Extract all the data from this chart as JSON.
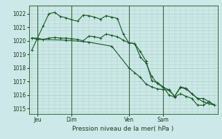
{
  "background_color": "#cce8e8",
  "grid_color": "#aacfbe",
  "line_color": "#1a5c2a",
  "vline_color": "#336633",
  "spine_color": "#336633",
  "tick_color": "#1a3a1a",
  "title": "Pression niveau de la mer( hPa )",
  "ylabel_ticks": [
    1015,
    1016,
    1017,
    1018,
    1019,
    1020,
    1021,
    1022
  ],
  "ylim": [
    1014.6,
    1022.6
  ],
  "day_labels": [
    "Jeu",
    "Dim",
    "Ven",
    "Sam"
  ],
  "day_positions": [
    1,
    7,
    17,
    23
  ],
  "vline_positions": [
    1,
    7,
    17,
    23
  ],
  "series": [
    [
      [
        0,
        1019.3
      ],
      [
        1,
        1020.2
      ],
      [
        2,
        1021.1
      ],
      [
        3,
        1022.0
      ],
      [
        4,
        1022.1
      ],
      [
        5,
        1021.8
      ],
      [
        6,
        1021.7
      ],
      [
        7,
        1021.55
      ],
      [
        8,
        1021.45
      ],
      [
        9,
        1021.9
      ],
      [
        10,
        1021.85
      ],
      [
        11,
        1021.75
      ],
      [
        12,
        1021.6
      ],
      [
        13,
        1021.85
      ],
      [
        14,
        1021.75
      ],
      [
        15,
        1021.65
      ],
      [
        16,
        1020.5
      ],
      [
        17,
        1019.85
      ],
      [
        18,
        1019.8
      ],
      [
        19,
        1019.2
      ],
      [
        20,
        1018.5
      ],
      [
        21,
        1017.05
      ],
      [
        22,
        1016.9
      ],
      [
        23,
        1016.6
      ],
      [
        24,
        1016.0
      ],
      [
        25,
        1015.85
      ],
      [
        26,
        1016.1
      ],
      [
        27,
        1015.9
      ],
      [
        28,
        1015.75
      ],
      [
        29,
        1015.25
      ],
      [
        30,
        1015.25
      ],
      [
        31,
        1015.5
      ],
      [
        32,
        1015.25
      ]
    ],
    [
      [
        0,
        1020.2
      ],
      [
        1,
        1020.2
      ],
      [
        2,
        1020.1
      ],
      [
        3,
        1020.2
      ],
      [
        4,
        1020.25
      ],
      [
        5,
        1020.2
      ],
      [
        6,
        1020.2
      ],
      [
        7,
        1020.15
      ],
      [
        8,
        1020.1
      ],
      [
        9,
        1020.0
      ],
      [
        10,
        1020.35
      ],
      [
        11,
        1020.3
      ],
      [
        12,
        1020.2
      ],
      [
        13,
        1020.5
      ],
      [
        14,
        1020.4
      ],
      [
        15,
        1020.3
      ],
      [
        16,
        1020.05
      ],
      [
        17,
        1019.85
      ],
      [
        18,
        1019.8
      ],
      [
        19,
        1018.8
      ],
      [
        20,
        1018.35
      ],
      [
        21,
        1017.35
      ],
      [
        22,
        1016.85
      ],
      [
        23,
        1016.55
      ],
      [
        24,
        1016.4
      ],
      [
        25,
        1015.9
      ],
      [
        26,
        1016.55
      ],
      [
        27,
        1016.45
      ],
      [
        28,
        1016.1
      ],
      [
        29,
        1015.75
      ],
      [
        30,
        1015.75
      ],
      [
        31,
        1015.5
      ],
      [
        32,
        1015.25
      ]
    ],
    [
      [
        0,
        1020.2
      ],
      [
        1,
        1020.1
      ],
      [
        6,
        1020.05
      ],
      [
        10,
        1019.9
      ],
      [
        14,
        1019.6
      ],
      [
        17,
        1018.0
      ],
      [
        18,
        1017.65
      ],
      [
        19,
        1017.3
      ],
      [
        20,
        1016.8
      ],
      [
        21,
        1016.6
      ],
      [
        22,
        1016.45
      ],
      [
        23,
        1016.4
      ],
      [
        24,
        1016.35
      ],
      [
        25,
        1015.9
      ],
      [
        26,
        1016.6
      ],
      [
        27,
        1016.5
      ],
      [
        28,
        1016.1
      ],
      [
        29,
        1015.75
      ],
      [
        30,
        1015.5
      ],
      [
        31,
        1015.35
      ],
      [
        32,
        1015.25
      ]
    ]
  ],
  "xlim": [
    -0.5,
    32.5
  ]
}
